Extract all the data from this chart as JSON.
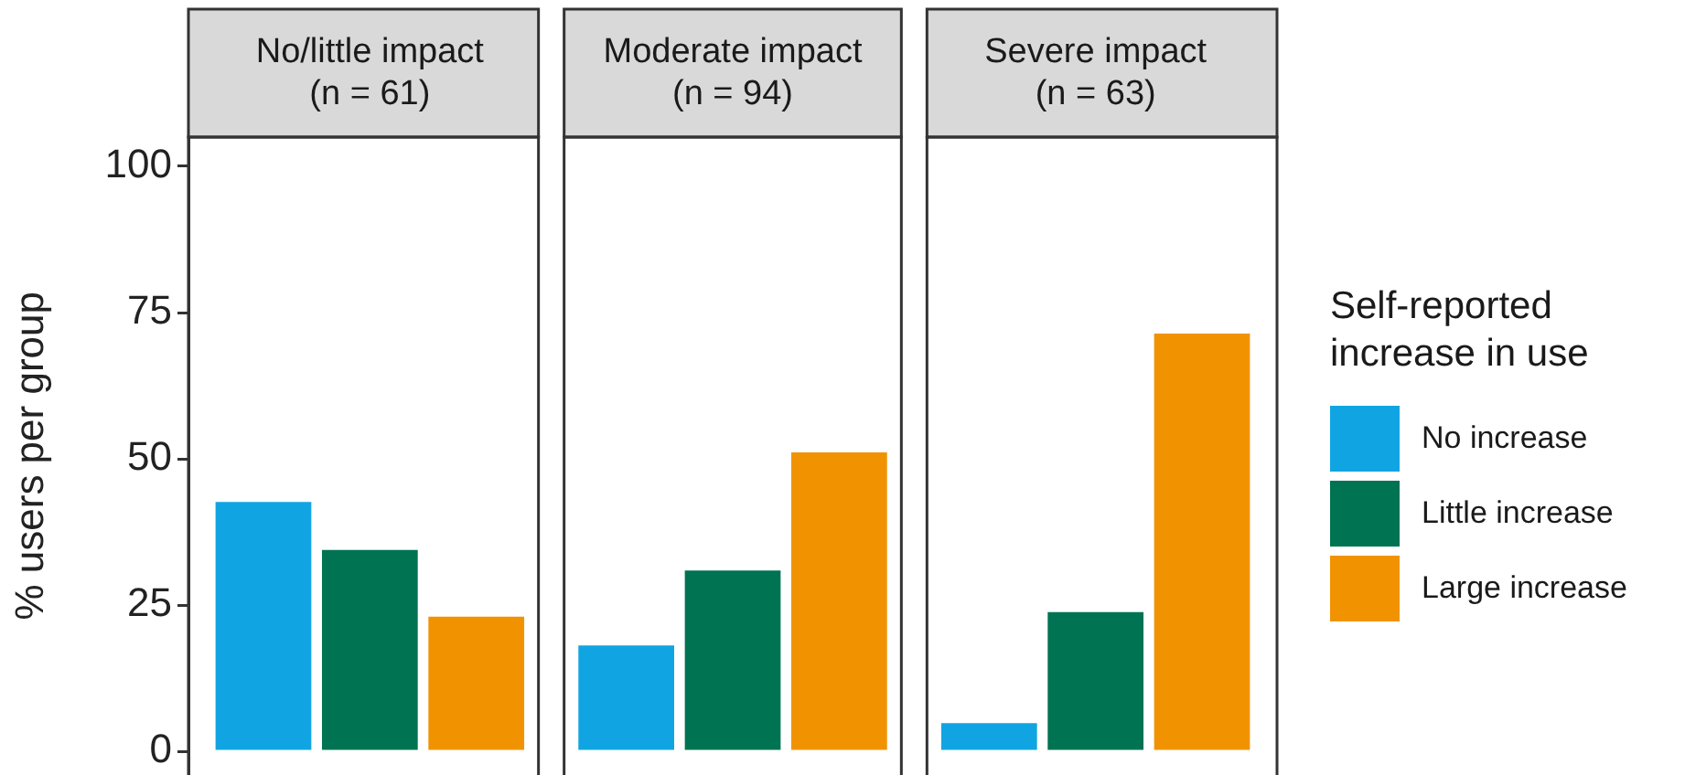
{
  "chart_data": {
    "type": "bar",
    "categories": [
      "No/little impact\n(n = 61)",
      "Moderate impact\n(n = 94)",
      "Severe impact\n(n = 63)"
    ],
    "ylabel": "% users per group",
    "ylim": [
      -4,
      105
    ],
    "yticks": [
      0,
      25,
      50,
      75,
      100
    ],
    "legend": "right",
    "legend_title": "Self-reported\nincrease in use",
    "series": [
      {
        "name": "No increase",
        "color": "#10a5e2",
        "values": [
          42.6,
          18.1,
          4.8
        ]
      },
      {
        "name": "Little increase",
        "color": "#007353",
        "values": [
          34.4,
          30.9,
          23.8
        ]
      },
      {
        "name": "Large increase",
        "color": "#f19300",
        "values": [
          23.0,
          51.1,
          71.4
        ]
      }
    ]
  }
}
